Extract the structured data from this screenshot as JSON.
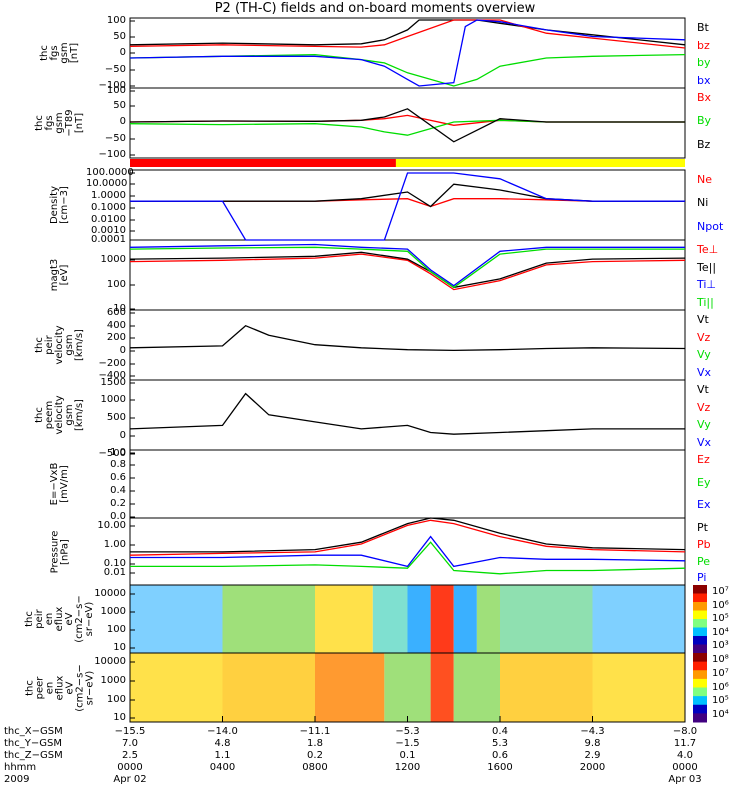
{
  "title": "P2 (TH-C) fields and on-board moments overview",
  "colors": {
    "black": "#000000",
    "red": "#ff0000",
    "green": "#00dd00",
    "blue": "#0000ff",
    "yellow": "#ffff00"
  },
  "panels": [
    {
      "id": "fgs",
      "ylabel": [
        "thc",
        "fgs",
        "gsm",
        "[nT]"
      ],
      "ticks": [
        "100",
        "50",
        "0",
        "−50",
        "−100"
      ],
      "legend": [
        {
          "t": "Bt",
          "c": "black"
        },
        {
          "t": "bz",
          "c": "red"
        },
        {
          "t": "by",
          "c": "green"
        },
        {
          "t": "bx",
          "c": "blue"
        }
      ]
    },
    {
      "id": "fgh",
      "ylabel": [
        "thc",
        "fgs",
        "gsm",
        "−T89",
        "[nT]"
      ],
      "ticks": [
        "100",
        "50",
        "0",
        "−50",
        "−100"
      ],
      "legend": [
        {
          "t": "Bx",
          "c": "red"
        },
        {
          "t": "By",
          "c": "green"
        },
        {
          "t": "Bz",
          "c": "black"
        }
      ]
    },
    {
      "id": "density",
      "ylabel": [
        "Density",
        "[cm−3]"
      ],
      "ticks": [
        "100.0000",
        "10.0000",
        "1.0000",
        "0.1000",
        "0.0100",
        "0.0010",
        "0.0001"
      ],
      "legend": [
        {
          "t": "Ne",
          "c": "red"
        },
        {
          "t": "Ni",
          "c": "black"
        },
        {
          "t": "Npot",
          "c": "blue"
        }
      ]
    },
    {
      "id": "temp",
      "ylabel": [
        "magt3",
        "[eV]"
      ],
      "ticks": [
        "1000",
        "100",
        "10"
      ],
      "legend": [
        {
          "t": "Te⊥",
          "c": "red"
        },
        {
          "t": "Te||",
          "c": "black"
        },
        {
          "t": "Ti⊥",
          "c": "blue"
        },
        {
          "t": "Ti||",
          "c": "green"
        }
      ]
    },
    {
      "id": "veir",
      "ylabel": [
        "thc",
        "peir",
        "velocity",
        "gsm",
        "[km/s]"
      ],
      "ticks": [
        "600",
        "400",
        "200",
        "0",
        "−200",
        "−400"
      ],
      "legend": [
        {
          "t": "Vt",
          "c": "black"
        },
        {
          "t": "Vz",
          "c": "red"
        },
        {
          "t": "Vy",
          "c": "green"
        },
        {
          "t": "Vx",
          "c": "blue"
        }
      ]
    },
    {
      "id": "veem",
      "ylabel": [
        "thc",
        "peem",
        "velocity",
        "gsm",
        "[km/s]"
      ],
      "ticks": [
        "1500",
        "1000",
        "500",
        "0",
        "−500"
      ],
      "legend": [
        {
          "t": "Vt",
          "c": "black"
        },
        {
          "t": "Vz",
          "c": "red"
        },
        {
          "t": "Vy",
          "c": "green"
        },
        {
          "t": "Vx",
          "c": "blue"
        }
      ]
    },
    {
      "id": "efield",
      "ylabel": [
        "E=−VxB",
        "[mV/m]"
      ],
      "ticks": [
        "1.0",
        "0.8",
        "0.6",
        "0.4",
        "0.2",
        "0.0"
      ],
      "legend": [
        {
          "t": "Ez",
          "c": "red"
        },
        {
          "t": "Ey",
          "c": "green"
        },
        {
          "t": "Ex",
          "c": "blue"
        }
      ]
    },
    {
      "id": "pressure",
      "ylabel": [
        "Pressure",
        "[nPa]"
      ],
      "ticks": [
        "10.00",
        "1.00",
        "0.10",
        "0.01"
      ],
      "legend": [
        {
          "t": "Pt",
          "c": "black"
        },
        {
          "t": "Pb",
          "c": "red"
        },
        {
          "t": "Pe",
          "c": "green"
        },
        {
          "t": "Pi",
          "c": "blue"
        }
      ]
    },
    {
      "id": "ionspec",
      "ylabel": [
        "thc",
        "peir",
        "en",
        "eflux",
        "eV",
        "(cm2−s−",
        "sr−eV)"
      ],
      "ticks": [
        "10000",
        "1000",
        "100",
        "10"
      ],
      "colorbar": [
        "10⁷",
        "10⁶",
        "10⁵",
        "10⁴",
        "10³"
      ]
    },
    {
      "id": "elecspec",
      "ylabel": [
        "thc",
        "peer",
        "en",
        "eflux",
        "eV",
        "(cm2−s−",
        "sr−eV)"
      ],
      "ticks": [
        "10000",
        "1000",
        "100",
        "10"
      ],
      "colorbar": [
        "10⁸",
        "10⁷",
        "10⁶",
        "10⁵",
        "10⁴"
      ]
    }
  ],
  "ephemeris": {
    "labels": [
      "thc_X−GSM",
      "thc_Y−GSM",
      "thc_Z−GSM",
      "hhmm",
      "2009"
    ],
    "columns": [
      [
        "−15.5",
        "7.0",
        "2.5",
        "0000",
        "Apr 02"
      ],
      [
        "−14.0",
        "4.8",
        "1.1",
        "0400",
        ""
      ],
      [
        "−11.1",
        "1.8",
        "0.2",
        "0800",
        ""
      ],
      [
        "−5.3",
        "−1.5",
        "0.1",
        "1200",
        ""
      ],
      [
        "0.4",
        "5.3",
        "0.6",
        "1600",
        ""
      ],
      [
        "−4.3",
        "9.8",
        "2.9",
        "2000",
        ""
      ],
      [
        "−8.0",
        "11.7",
        "4.0",
        "0000",
        "Apr 03"
      ]
    ]
  },
  "chart_data": {
    "type": "line",
    "title": "P2 (TH-C) fields and on-board moments overview",
    "x_range_hours": [
      0,
      24
    ],
    "x_tick_labels": [
      "0000",
      "0400",
      "0800",
      "1200",
      "1600",
      "2000",
      "0000"
    ],
    "mode_bar": {
      "red": [
        0,
        11.5
      ],
      "yellow": [
        11.5,
        24
      ]
    },
    "series": [
      {
        "panel": "fgs",
        "name": "Bt",
        "x": [
          0,
          4,
          8,
          10,
          11,
          12,
          12.5,
          14,
          15,
          16,
          18,
          20,
          24
        ],
        "y": [
          25,
          30,
          25,
          28,
          40,
          70,
          100,
          100,
          100,
          90,
          70,
          55,
          25
        ]
      },
      {
        "panel": "fgs",
        "name": "bz",
        "x": [
          0,
          4,
          8,
          10,
          11,
          12,
          14,
          16,
          18,
          20,
          24
        ],
        "y": [
          20,
          25,
          20,
          18,
          25,
          50,
          100,
          100,
          60,
          45,
          15
        ]
      },
      {
        "panel": "fgs",
        "name": "by",
        "x": [
          0,
          4,
          8,
          10,
          11,
          12,
          14,
          15,
          16,
          18,
          20,
          24
        ],
        "y": [
          -15,
          -10,
          -5,
          -20,
          -30,
          -60,
          -100,
          -80,
          -40,
          -15,
          -10,
          -5
        ]
      },
      {
        "panel": "fgs",
        "name": "bx",
        "x": [
          0,
          4,
          8,
          10,
          11,
          12,
          12.5,
          14,
          14.5,
          15,
          16,
          18,
          20,
          24
        ],
        "y": [
          -15,
          -10,
          -10,
          -20,
          -40,
          -80,
          -100,
          -90,
          80,
          100,
          95,
          70,
          50,
          40
        ]
      },
      {
        "panel": "fgh",
        "name": "Bx",
        "x": [
          0,
          4,
          8,
          10,
          11,
          12,
          14,
          16,
          18,
          20,
          24
        ],
        "y": [
          0,
          3,
          2,
          5,
          10,
          20,
          -10,
          5,
          0,
          0,
          0
        ]
      },
      {
        "panel": "fgh",
        "name": "By",
        "x": [
          0,
          4,
          8,
          10,
          11,
          12,
          14,
          16,
          18,
          20,
          24
        ],
        "y": [
          -5,
          -8,
          -5,
          -15,
          -30,
          -40,
          0,
          5,
          0,
          0,
          0
        ]
      },
      {
        "panel": "fgh",
        "name": "Bz",
        "x": [
          0,
          4,
          8,
          10,
          11,
          12,
          14,
          16,
          18,
          20,
          24
        ],
        "y": [
          0,
          3,
          2,
          5,
          15,
          40,
          -60,
          10,
          0,
          0,
          0
        ]
      },
      {
        "panel": "density",
        "name": "Ne",
        "x": [
          0,
          4,
          8,
          10,
          12,
          13,
          14,
          16,
          18,
          20,
          24
        ],
        "y": [
          0.3,
          0.3,
          0.3,
          0.4,
          0.5,
          0.1,
          0.5,
          0.5,
          0.4,
          0.3,
          0.3
        ]
      },
      {
        "panel": "density",
        "name": "Ni",
        "x": [
          0,
          4,
          8,
          10,
          12,
          13,
          14,
          16,
          18,
          20,
          24
        ],
        "y": [
          0.3,
          0.3,
          0.3,
          0.5,
          2,
          0.1,
          10,
          3,
          0.5,
          0.3,
          0.3
        ]
      },
      {
        "panel": "density",
        "name": "Npot",
        "x": [
          0,
          4,
          5,
          6,
          8,
          10,
          11,
          12,
          14,
          16,
          18,
          20,
          24
        ],
        "y": [
          0.3,
          0.3,
          0.0001,
          0.0001,
          0.0001,
          0.0001,
          0.0001,
          100,
          100,
          30,
          0.5,
          0.3,
          0.3
        ]
      },
      {
        "panel": "temp",
        "name": "Te⊥",
        "x": [
          0,
          4,
          8,
          10,
          12,
          13,
          14,
          16,
          18,
          20,
          24
        ],
        "y": [
          700,
          800,
          1000,
          1500,
          800,
          200,
          40,
          100,
          500,
          700,
          800
        ]
      },
      {
        "panel": "temp",
        "name": "Te||",
        "x": [
          0,
          4,
          8,
          10,
          12,
          13,
          14,
          16,
          18,
          20,
          24
        ],
        "y": [
          900,
          1000,
          1200,
          1800,
          900,
          250,
          50,
          120,
          600,
          900,
          1000
        ]
      },
      {
        "panel": "temp",
        "name": "Ti⊥",
        "x": [
          0,
          4,
          8,
          10,
          12,
          13,
          14,
          16,
          18,
          20,
          24
        ],
        "y": [
          3000,
          3500,
          4000,
          3000,
          2500,
          300,
          60,
          2000,
          3000,
          3000,
          3000
        ]
      },
      {
        "panel": "temp",
        "name": "Ti||",
        "x": [
          0,
          4,
          8,
          10,
          12,
          13,
          14,
          16,
          18,
          20,
          24
        ],
        "y": [
          2500,
          2800,
          3000,
          2500,
          2000,
          250,
          50,
          1500,
          2500,
          2500,
          2500
        ]
      },
      {
        "panel": "veir",
        "name": "Vt",
        "x": [
          0,
          4,
          5,
          6,
          8,
          10,
          12,
          14,
          16,
          18,
          20,
          24
        ],
        "y": [
          50,
          80,
          400,
          250,
          100,
          50,
          20,
          10,
          20,
          40,
          50,
          40
        ]
      },
      {
        "panel": "veem",
        "name": "Vt",
        "x": [
          0,
          4,
          5,
          6,
          8,
          10,
          12,
          13,
          14,
          16,
          18,
          20,
          24
        ],
        "y": [
          200,
          300,
          1200,
          600,
          400,
          200,
          300,
          100,
          50,
          100,
          150,
          200,
          200
        ]
      },
      {
        "panel": "pressure",
        "name": "Pt",
        "x": [
          0,
          4,
          8,
          10,
          12,
          13,
          14,
          16,
          18,
          20,
          24
        ],
        "y": [
          0.3,
          0.3,
          0.4,
          1,
          10,
          20,
          15,
          3,
          0.8,
          0.5,
          0.4
        ]
      },
      {
        "panel": "pressure",
        "name": "Pb",
        "x": [
          0,
          4,
          8,
          10,
          12,
          13,
          14,
          16,
          18,
          20,
          24
        ],
        "y": [
          0.2,
          0.25,
          0.3,
          0.8,
          8,
          15,
          10,
          2,
          0.6,
          0.4,
          0.3
        ]
      },
      {
        "panel": "pressure",
        "name": "Pe",
        "x": [
          0,
          4,
          8,
          10,
          12,
          13,
          14,
          16,
          18,
          20,
          24
        ],
        "y": [
          0.05,
          0.05,
          0.06,
          0.05,
          0.04,
          1,
          0.03,
          0.02,
          0.03,
          0.03,
          0.04
        ]
      },
      {
        "panel": "pressure",
        "name": "Pi",
        "x": [
          0,
          4,
          8,
          10,
          12,
          13,
          14,
          16,
          18,
          20,
          24
        ],
        "y": [
          0.15,
          0.15,
          0.2,
          0.2,
          0.05,
          2,
          0.05,
          0.15,
          0.12,
          0.12,
          0.1
        ]
      }
    ]
  }
}
